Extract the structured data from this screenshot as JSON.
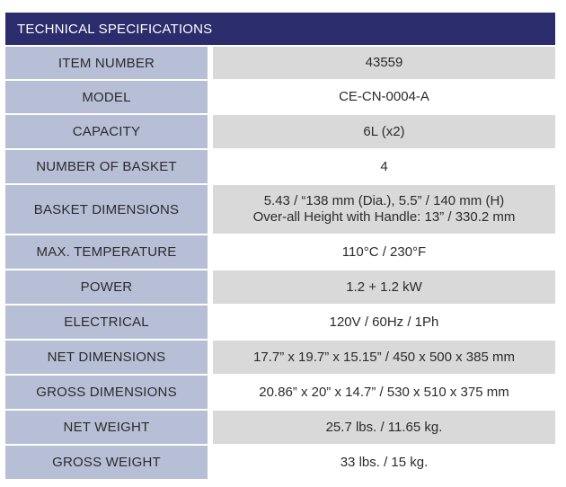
{
  "title": "TECHNICAL SPECIFICATIONS",
  "specs": [
    {
      "label": "ITEM NUMBER",
      "value": [
        "43559"
      ]
    },
    {
      "label": "MODEL",
      "value": [
        "CE-CN-0004-A"
      ]
    },
    {
      "label": "CAPACITY",
      "value": [
        "6L (x2)"
      ]
    },
    {
      "label": "NUMBER OF BASKET",
      "value": [
        "4"
      ]
    },
    {
      "label": "BASKET DIMENSIONS",
      "value": [
        "5.43 / “138 mm (Dia.), 5.5” / 140 mm (H)",
        "Over-all Height with Handle: 13” / 330.2 mm"
      ]
    },
    {
      "label": "MAX. TEMPERATURE",
      "value": [
        "110°C / 230°F"
      ]
    },
    {
      "label": "POWER",
      "value": [
        "1.2 + 1.2 kW"
      ]
    },
    {
      "label": "ELECTRICAL",
      "value": [
        "120V / 60Hz / 1Ph"
      ]
    },
    {
      "label": "NET DIMENSIONS",
      "value": [
        "17.7” x 19.7” x 15.15” / 450 x 500 x 385 mm"
      ]
    },
    {
      "label": "GROSS DIMENSIONS",
      "value": [
        "20.86” x 20” x 14.7” / 530 x 510 x 375 mm"
      ]
    },
    {
      "label": "NET WEIGHT",
      "value": [
        "25.7 lbs. / 11.65 kg."
      ]
    },
    {
      "label": "GROSS WEIGHT",
      "value": [
        "33 lbs. / 15 kg."
      ]
    }
  ]
}
